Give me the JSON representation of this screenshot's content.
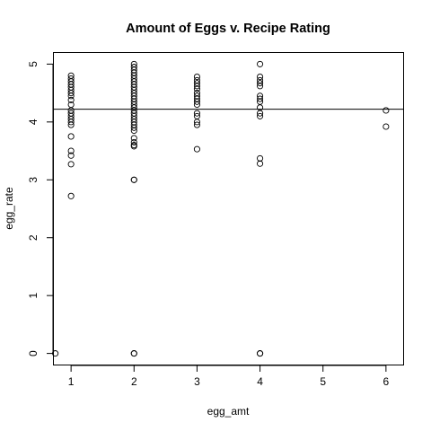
{
  "chart_data": {
    "type": "scatter",
    "title": "Amount of Eggs v. Recipe Rating",
    "xlabel": "egg_amt",
    "ylabel": "egg_rate",
    "xlim": [
      0.72,
      6.28
    ],
    "ylim": [
      -0.2,
      5.2
    ],
    "x_ticks": [
      1,
      2,
      3,
      4,
      5,
      6
    ],
    "y_ticks": [
      0,
      1,
      2,
      3,
      4,
      5
    ],
    "grid": false,
    "legend": "none",
    "reference_line": {
      "orientation": "horizontal",
      "y": 4.22
    },
    "points": [
      [
        0.75,
        0
      ],
      [
        1,
        4.8
      ],
      [
        1,
        4.75
      ],
      [
        1,
        4.7
      ],
      [
        1,
        4.65
      ],
      [
        1,
        4.6
      ],
      [
        1,
        4.55
      ],
      [
        1,
        4.5
      ],
      [
        1,
        4.45
      ],
      [
        1,
        4.38
      ],
      [
        1,
        4.3
      ],
      [
        1,
        4.2
      ],
      [
        1,
        4.15
      ],
      [
        1,
        4.1
      ],
      [
        1,
        4.05
      ],
      [
        1,
        4.0
      ],
      [
        1,
        3.95
      ],
      [
        1,
        3.75
      ],
      [
        1,
        3.5
      ],
      [
        1,
        3.42
      ],
      [
        1,
        3.27
      ],
      [
        1,
        2.72
      ],
      [
        2,
        5.0
      ],
      [
        2,
        4.95
      ],
      [
        2,
        4.9
      ],
      [
        2,
        4.85
      ],
      [
        2,
        4.8
      ],
      [
        2,
        4.75
      ],
      [
        2,
        4.7
      ],
      [
        2,
        4.65
      ],
      [
        2,
        4.6
      ],
      [
        2,
        4.55
      ],
      [
        2,
        4.5
      ],
      [
        2,
        4.45
      ],
      [
        2,
        4.4
      ],
      [
        2,
        4.35
      ],
      [
        2,
        4.3
      ],
      [
        2,
        4.25
      ],
      [
        2,
        4.2
      ],
      [
        2,
        4.15
      ],
      [
        2,
        4.1
      ],
      [
        2,
        4.05
      ],
      [
        2,
        4.0
      ],
      [
        2,
        3.95
      ],
      [
        2,
        3.9
      ],
      [
        2,
        3.85
      ],
      [
        2,
        3.72
      ],
      [
        2,
        3.65
      ],
      [
        2,
        3.6
      ],
      [
        2,
        3.58
      ],
      [
        2,
        3.0
      ],
      [
        2,
        3.0
      ],
      [
        2,
        0
      ],
      [
        2,
        0
      ],
      [
        3,
        4.78
      ],
      [
        3,
        4.72
      ],
      [
        3,
        4.67
      ],
      [
        3,
        4.62
      ],
      [
        3,
        4.57
      ],
      [
        3,
        4.5
      ],
      [
        3,
        4.45
      ],
      [
        3,
        4.4
      ],
      [
        3,
        4.35
      ],
      [
        3,
        4.3
      ],
      [
        3,
        4.15
      ],
      [
        3,
        4.1
      ],
      [
        3,
        4.0
      ],
      [
        3,
        3.95
      ],
      [
        3,
        3.53
      ],
      [
        4,
        5.0
      ],
      [
        4,
        4.78
      ],
      [
        4,
        4.72
      ],
      [
        4,
        4.67
      ],
      [
        4,
        4.62
      ],
      [
        4,
        4.45
      ],
      [
        4,
        4.4
      ],
      [
        4,
        4.35
      ],
      [
        4,
        4.25
      ],
      [
        4,
        4.15
      ],
      [
        4,
        4.1
      ],
      [
        4,
        3.37
      ],
      [
        4,
        3.28
      ],
      [
        4,
        0
      ],
      [
        4,
        0
      ],
      [
        6,
        4.2
      ],
      [
        6,
        3.92
      ]
    ]
  }
}
